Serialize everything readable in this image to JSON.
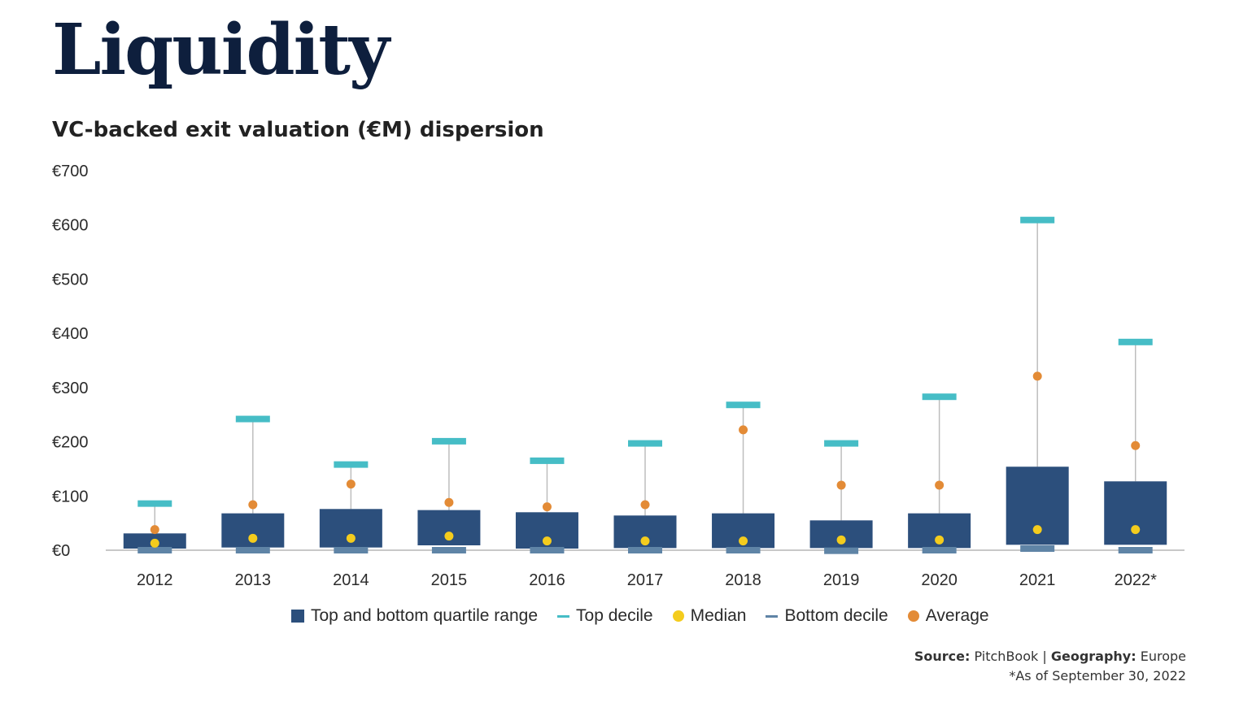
{
  "header": {
    "title": "Liquidity",
    "subtitle": "VC-backed exit valuation (€M) dispersion"
  },
  "legend": {
    "quartile": "Top and bottom quartile range",
    "top_decile": "Top decile",
    "median": "Median",
    "bottom_decile": "Bottom decile",
    "average": "Average"
  },
  "footer": {
    "source_label": "Source:",
    "source_value": "PitchBook",
    "separator": "|",
    "geography_label": "Geography:",
    "geography_value": "Europe",
    "note": "*As of September 30, 2022"
  },
  "colors": {
    "box": "#2c4f7c",
    "top_decile": "#46bdc6",
    "median": "#f4cc1d",
    "bottom_decile": "#5f84a6",
    "average": "#e38b36",
    "whisker": "#bdbdbd",
    "axis": "#c8c8c8"
  },
  "chart_data": {
    "type": "box",
    "title": "VC-backed exit valuation (€M) dispersion",
    "xlabel": "",
    "ylabel": "",
    "ylim": [
      0,
      700
    ],
    "y_ticks": [
      0,
      100,
      200,
      300,
      400,
      500,
      600,
      700
    ],
    "y_tick_labels": [
      "€0",
      "€100",
      "€200",
      "€300",
      "€400",
      "€500",
      "€600",
      "€700"
    ],
    "categories": [
      "2012",
      "2013",
      "2014",
      "2015",
      "2016",
      "2017",
      "2018",
      "2019",
      "2020",
      "2021",
      "2022*"
    ],
    "series": [
      {
        "name": "Top decile",
        "values": [
          86,
          242,
          158,
          201,
          165,
          197,
          268,
          197,
          283,
          609,
          384
        ]
      },
      {
        "name": "Top and bottom quartile range (top)",
        "values": [
          31,
          68,
          76,
          74,
          70,
          64,
          68,
          55,
          68,
          154,
          127
        ]
      },
      {
        "name": "Top and bottom quartile range (bottom)",
        "values": [
          3,
          5,
          5,
          9,
          3,
          4,
          4,
          4,
          4,
          10,
          10
        ]
      },
      {
        "name": "Median",
        "values": [
          13,
          22,
          22,
          26,
          17,
          17,
          17,
          19,
          19,
          38,
          38
        ]
      },
      {
        "name": "Bottom decile",
        "values": [
          0,
          0,
          0,
          0,
          0,
          0,
          0,
          -1,
          0,
          3,
          0
        ]
      },
      {
        "name": "Average",
        "values": [
          38,
          84,
          122,
          88,
          80,
          84,
          222,
          120,
          120,
          321,
          193
        ]
      }
    ]
  }
}
